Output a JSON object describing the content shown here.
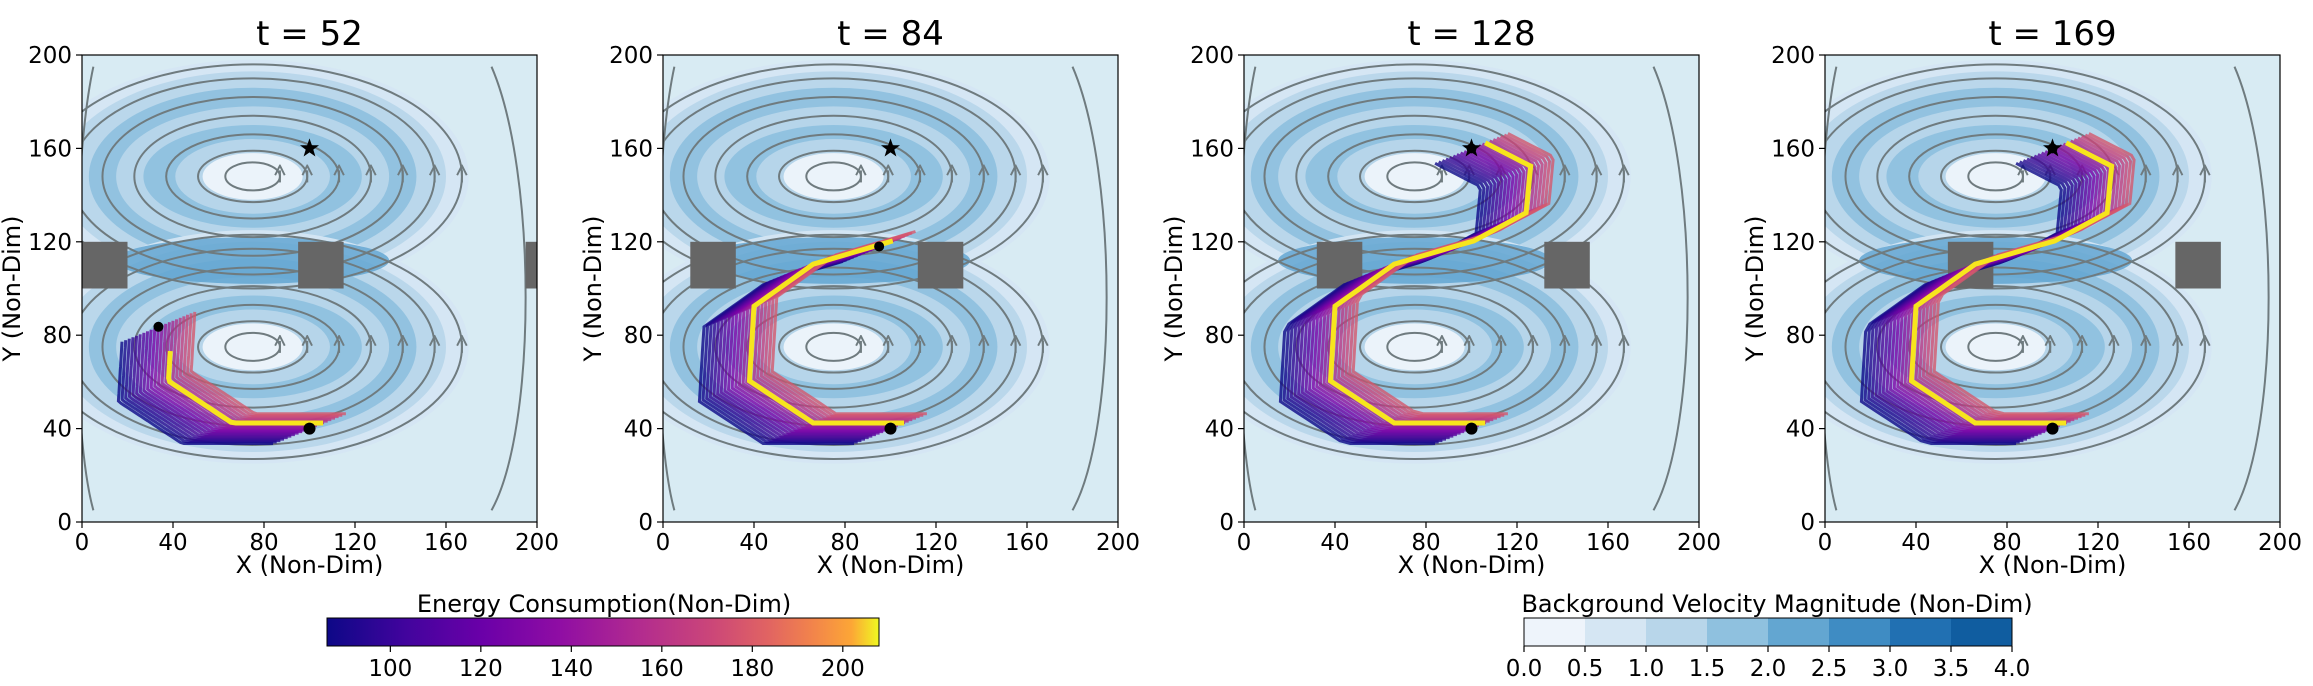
{
  "chart_data": {
    "type": "contour-streamline-trajectory",
    "panels": [
      {
        "title": "t = 52",
        "time": 52,
        "obstacles": [
          [
            0,
            20,
            100,
            120
          ],
          [
            95,
            115,
            100,
            120
          ],
          [
            195,
            205,
            100,
            120
          ]
        ],
        "front_end_y": 75
      },
      {
        "title": "t = 84",
        "time": 84,
        "obstacles": [
          [
            12,
            32,
            100,
            120
          ],
          [
            112,
            132,
            100,
            120
          ]
        ],
        "front_end_y": 115
      },
      {
        "title": "t = 128",
        "time": 128,
        "obstacles": [
          [
            32,
            52,
            100,
            120
          ],
          [
            132,
            152,
            100,
            120
          ]
        ],
        "front_end_y": 160
      },
      {
        "title": "t = 169",
        "time": 169,
        "obstacles": [
          [
            54,
            74,
            100,
            120
          ],
          [
            154,
            174,
            100,
            120
          ]
        ],
        "front_end_y": 160
      }
    ],
    "xlabel": "X (Non-Dim)",
    "ylabel": "Y (Non-Dim)",
    "xlim": [
      0,
      200
    ],
    "ylim": [
      0,
      200
    ],
    "xticks": [
      "0",
      "40",
      "80",
      "120",
      "160",
      "200"
    ],
    "yticks": [
      "0",
      "40",
      "80",
      "120",
      "160",
      "200"
    ],
    "start_point": [
      100,
      40
    ],
    "target_point": [
      100,
      160
    ],
    "energy_colorbar": {
      "label": "Energy Consumption(Non-Dim)",
      "ticks": [
        "100",
        "120",
        "140",
        "160",
        "180",
        "200"
      ],
      "range": [
        86,
        208
      ],
      "colormap": "plasma"
    },
    "velocity_colorbar": {
      "label": "Background Velocity Magnitude (Non-Dim)",
      "ticks": [
        "0.0",
        "0.5",
        "1.0",
        "1.5",
        "2.0",
        "2.5",
        "3.0",
        "3.5",
        "4.0"
      ],
      "levels": [
        "#eef4fb",
        "#d5e6f3",
        "#b8d6ea",
        "#8fc1df",
        "#63a6d1",
        "#3f8cc3",
        "#2170b2",
        "#105da0",
        "#083e80"
      ]
    }
  }
}
